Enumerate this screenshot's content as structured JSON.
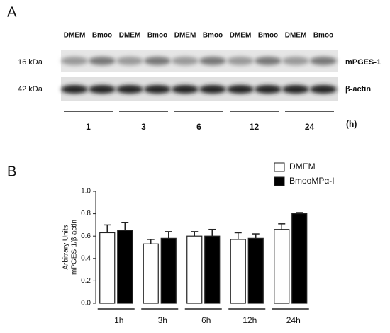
{
  "panel_a": {
    "label": "A",
    "lanes": [
      "DMEM",
      "Bmoo",
      "DMEM",
      "Bmoo",
      "DMEM",
      "Bmoo",
      "DMEM",
      "Bmoo",
      "DMEM",
      "Bmoo"
    ],
    "rows": [
      {
        "kda": "16 kDa",
        "name": "mPGES-1"
      },
      {
        "kda": "42 kDa",
        "name": "β-actin"
      }
    ],
    "times": [
      "1",
      "3",
      "6",
      "12",
      "24"
    ],
    "unit": "(h)"
  },
  "panel_b_label": "B",
  "chart_data": {
    "type": "bar",
    "ylabel": [
      "Arbitrary Units",
      "mPGES-1/β-actin"
    ],
    "categories": [
      "1h",
      "3h",
      "6h",
      "12h",
      "24h"
    ],
    "series": [
      {
        "name": "DMEM",
        "color": "#ffffff",
        "values": [
          0.63,
          0.53,
          0.6,
          0.57,
          0.66
        ],
        "errors": [
          0.07,
          0.04,
          0.04,
          0.06,
          0.05
        ]
      },
      {
        "name": "BmooMPα-I",
        "color": "#000000",
        "values": [
          0.65,
          0.58,
          0.6,
          0.58,
          0.8
        ],
        "errors": [
          0.07,
          0.06,
          0.06,
          0.04,
          0.01
        ]
      }
    ],
    "ylim": [
      0,
      1.0
    ],
    "yticks": [
      {
        "value": 0,
        "label": "0.0"
      },
      {
        "value": 0.2,
        "label": "0.2"
      },
      {
        "value": 0.4,
        "label": "0.4"
      },
      {
        "value": 0.6,
        "label": "0.6"
      },
      {
        "value": 0.8,
        "label": "0.8"
      },
      {
        "value": 1.0,
        "label": "1.0"
      }
    ],
    "legend": "top-right"
  }
}
